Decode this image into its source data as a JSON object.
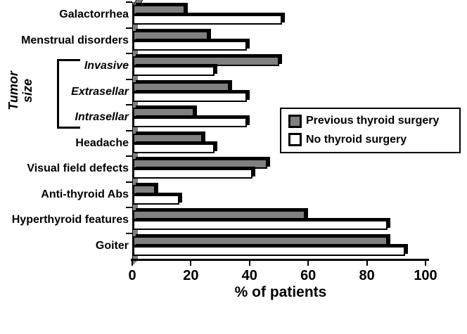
{
  "chart_data": {
    "type": "bar",
    "orientation": "horizontal",
    "title": "",
    "xlabel": "% of patients",
    "xlim": [
      0,
      100
    ],
    "xticks": [
      0,
      20,
      40,
      60,
      80,
      100
    ],
    "grid": false,
    "legend_position": "middle-right",
    "categories": [
      {
        "label": "Galactorrhea",
        "italic": false
      },
      {
        "label": "Menstrual disorders",
        "italic": false
      },
      {
        "label": "Invasive",
        "italic": true
      },
      {
        "label": "Extrasellar",
        "italic": true
      },
      {
        "label": "Intrasellar",
        "italic": true
      },
      {
        "label": "Headache",
        "italic": false
      },
      {
        "label": "Visual field defects",
        "italic": false
      },
      {
        "label": "Anti-thyroid Abs",
        "italic": false
      },
      {
        "label": "Hyperthyroid features",
        "italic": false
      },
      {
        "label": "Goiter",
        "italic": false
      }
    ],
    "group_label": "Tumor size",
    "group_category_range": [
      2,
      4
    ],
    "series": [
      {
        "name": "Previous thyroid surgery",
        "color": "#808080",
        "values": [
          18,
          26,
          50,
          33,
          21,
          24,
          46,
          8,
          59,
          87
        ]
      },
      {
        "name": "No thyroid surgery",
        "color": "#ffffff",
        "values": [
          51,
          39,
          28,
          39,
          39,
          28,
          41,
          16,
          87,
          93
        ]
      }
    ],
    "colors": {
      "bar_outline": "#000000",
      "axis_wall": "#808080",
      "background": "#ffffff"
    }
  }
}
